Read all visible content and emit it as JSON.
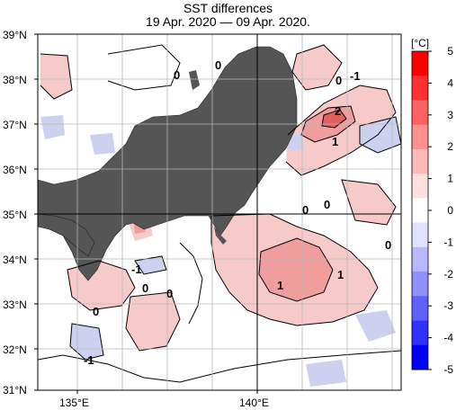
{
  "title": "SST differences",
  "subtitle": "19 Apr. 2020 — 09 Apr. 2020.",
  "lat_labels": [
    "39°N",
    "38°N",
    "37°N",
    "36°N",
    "35°N",
    "34°N",
    "33°N",
    "32°N",
    "31°N"
  ],
  "lon_labels": [
    "135°E",
    "140°E"
  ],
  "colorbar": {
    "unit": "[°C]",
    "tick_labels": [
      "5",
      "4",
      "3",
      "2",
      "1",
      "0",
      "-1",
      "-2",
      "-3",
      "-4",
      "-5"
    ],
    "colors": [
      "#ff0000",
      "#ff3030",
      "#ff6060",
      "#ff9090",
      "#ffb8b8",
      "#ffe0e0",
      "#ffffff",
      "#e0e0ff",
      "#b8b8ff",
      "#9090ff",
      "#6060ff",
      "#3030ff",
      "#0000ff"
    ]
  },
  "contour_labels": [
    "0",
    "0",
    "0",
    "-1",
    "2",
    "1",
    "0",
    "0",
    "0",
    "-1",
    "0",
    "0",
    "1",
    "1",
    "0",
    "-1"
  ],
  "colors": {
    "land": "#555555",
    "warm": "#f4c4c4",
    "cool": "#c8ccee"
  }
}
